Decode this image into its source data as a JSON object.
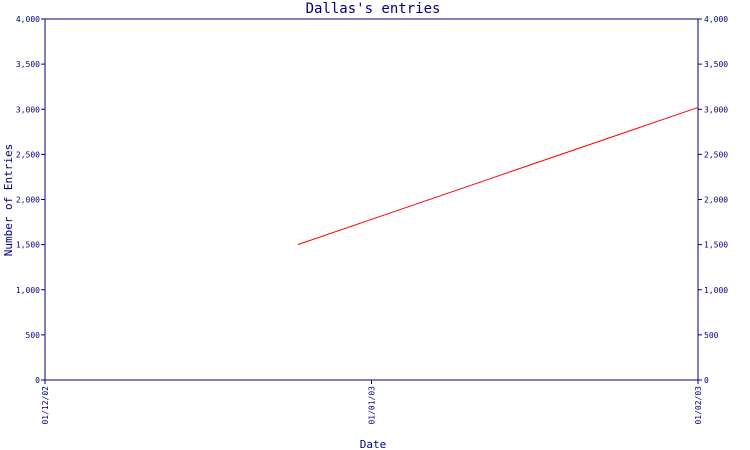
{
  "chart_data": {
    "type": "line",
    "title": "Dallas's entries",
    "xlabel": "Date",
    "ylabel": "Number of Entries",
    "x_ticks": [
      "01/12/02",
      "01/01/03",
      "01/02/03"
    ],
    "y_ticks": [
      "0",
      "500",
      "1,000",
      "1,500",
      "2,000",
      "2,500",
      "3,000",
      "3,500",
      "4,000"
    ],
    "ylim": [
      0,
      4000
    ],
    "xlim": [
      "2002-12-01",
      "2003-02-01"
    ],
    "grid": false,
    "series": [
      {
        "color": "#ff0000",
        "points": [
          {
            "x": "2002-12-25",
            "y": 1500
          },
          {
            "x": "2003-02-01",
            "y": 3020
          }
        ]
      }
    ],
    "colors": {
      "axis": "#000080",
      "text": "#000080",
      "background": "#ffffff"
    }
  }
}
